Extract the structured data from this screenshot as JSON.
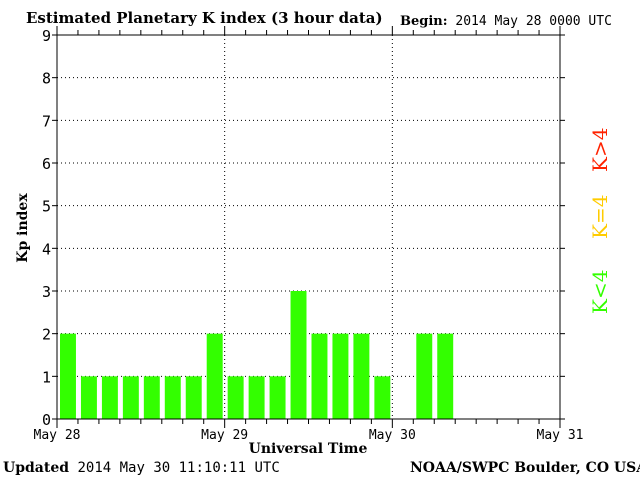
{
  "header": {
    "title": "Estimated Planetary K index (3 hour data)",
    "begin_label": "Begin:",
    "begin_value": "2014 May 28 0000 UTC"
  },
  "footer": {
    "updated_label": "Updated",
    "updated_value": "2014 May 30 11:10:11 UTC",
    "source": "NOAA/SWPC Boulder, CO USA"
  },
  "legend": {
    "above": {
      "label": "K>4",
      "color": "#ff2200"
    },
    "equal": {
      "label": "K=4",
      "color": "#ffcc00"
    },
    "below": {
      "label": "K<4",
      "color": "#33ff00"
    }
  },
  "chart_data": {
    "type": "bar",
    "title": "Estimated Planetary K index (3 hour data)",
    "xlabel": "Universal Time",
    "ylabel": "Kp index",
    "ylim": [
      0,
      9
    ],
    "yticks": [
      "0",
      "1",
      "2",
      "3",
      "4",
      "5",
      "6",
      "7",
      "8",
      "9"
    ],
    "x_day_ticks": [
      "May 28",
      "May 29",
      "May 30",
      "May 31"
    ],
    "bar_hours": 3,
    "total_hours": 72,
    "grid": true,
    "bar_color": "#33ff00",
    "series": [
      {
        "values": [
          2,
          1,
          1,
          1,
          1,
          1,
          1,
          2,
          1,
          1,
          1,
          3,
          2,
          2,
          2,
          1,
          null,
          2,
          2,
          null,
          null,
          null,
          null,
          null
        ]
      }
    ]
  }
}
